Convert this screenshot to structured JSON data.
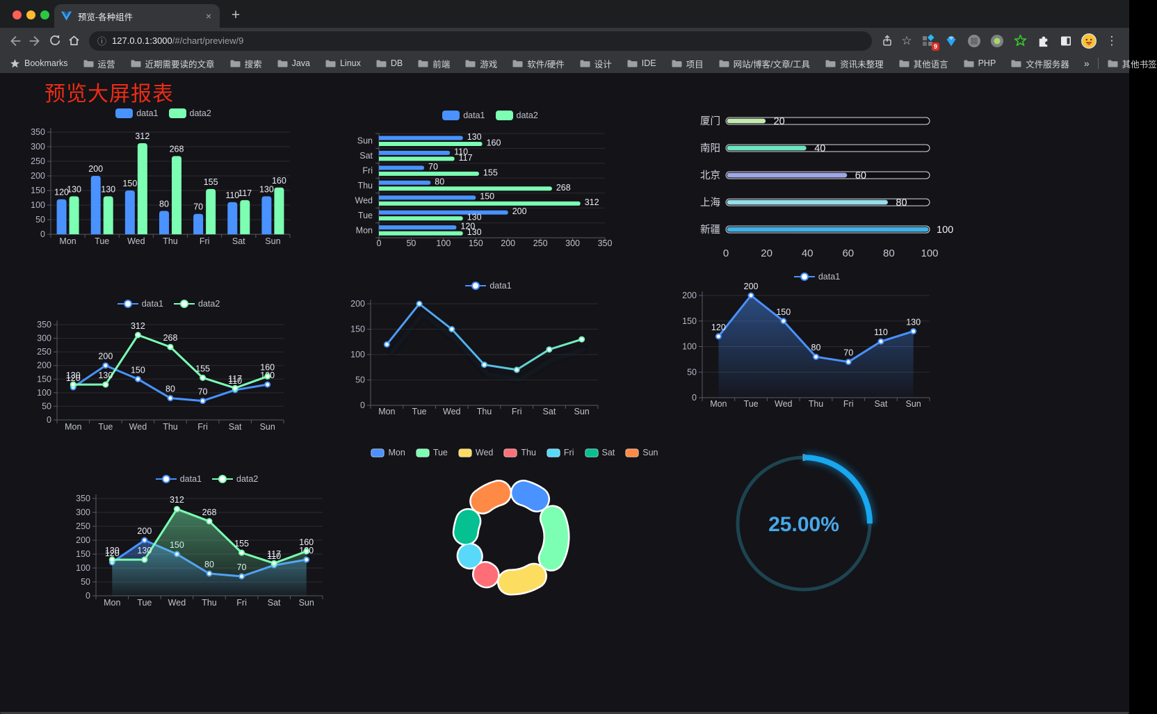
{
  "browser": {
    "tab": {
      "title": "预览-各种组件",
      "close_label": "×",
      "new_tab_label": "+"
    },
    "address": {
      "host": "127.0.0.1:3000",
      "path": "/#/chart/preview/9",
      "info_icon": "ⓘ"
    },
    "extension_badge": "9",
    "bookmarks_bar": {
      "star_label": "Bookmarks",
      "folders": [
        "运营",
        "近期需要读的文章",
        "搜索",
        "Java",
        "Linux",
        "DB",
        "前端",
        "游戏",
        "软件/硬件",
        "设计",
        "IDE",
        "项目",
        "网站/博客/文章/工具",
        "资讯未整理",
        "其他语言",
        "PHP",
        "文件服务器"
      ],
      "overflow": "»",
      "other_bookmarks": "其他书签"
    }
  },
  "page": {
    "title": "预览大屏报表",
    "title_color": "#ec2c14"
  },
  "palette": {
    "data1": "#4992ff",
    "data2": "#7cffb2"
  },
  "chart_data": [
    {
      "id": "bar-grouped",
      "type": "bar",
      "categories": [
        "Mon",
        "Tue",
        "Wed",
        "Thu",
        "Fri",
        "Sat",
        "Sun"
      ],
      "series": [
        {
          "name": "data1",
          "color": "#4992ff",
          "values": [
            120,
            200,
            150,
            80,
            70,
            110,
            130
          ]
        },
        {
          "name": "data2",
          "color": "#7cffb2",
          "values": [
            130,
            130,
            312,
            268,
            155,
            117,
            160
          ]
        }
      ],
      "ylim": [
        0,
        350
      ],
      "yticks": [
        0,
        50,
        100,
        150,
        200,
        250,
        300,
        350
      ],
      "grid": true,
      "legend_position": "top",
      "value_labels": true
    },
    {
      "id": "bar-horizontal",
      "type": "bar",
      "orientation": "horizontal",
      "categories_top_to_bottom": [
        "Sun",
        "Sat",
        "Fri",
        "Thu",
        "Wed",
        "Tue",
        "Mon"
      ],
      "series": [
        {
          "name": "data1",
          "color": "#4992ff",
          "values_top_to_bottom": [
            130,
            110,
            70,
            80,
            150,
            200,
            120
          ]
        },
        {
          "name": "data2",
          "color": "#7cffb2",
          "values_top_to_bottom": [
            160,
            117,
            155,
            268,
            312,
            130,
            130
          ]
        }
      ],
      "xlim": [
        0,
        350
      ],
      "xticks": [
        0,
        50,
        100,
        150,
        200,
        250,
        300,
        350
      ],
      "grid": true,
      "legend_position": "top",
      "value_labels": true
    },
    {
      "id": "capsule-bars",
      "type": "bar",
      "style": "capsule",
      "categories": [
        "厦门",
        "南阳",
        "北京",
        "上海",
        "新疆"
      ],
      "values": [
        20,
        40,
        60,
        80,
        100
      ],
      "colors": [
        "#c4ebad",
        "#6be6c1",
        "#a0a7e6",
        "#96dee8",
        "#3fb1e3"
      ],
      "xlim": [
        0,
        100
      ],
      "xticks": [
        0,
        20,
        40,
        60,
        80,
        100
      ],
      "value_labels": true
    },
    {
      "id": "line-two-series",
      "type": "line",
      "categories": [
        "Mon",
        "Tue",
        "Wed",
        "Thu",
        "Fri",
        "Sat",
        "Sun"
      ],
      "series": [
        {
          "name": "data1",
          "color": "#4992ff",
          "values": [
            120,
            200,
            150,
            80,
            70,
            110,
            130
          ]
        },
        {
          "name": "data2",
          "color": "#7cffb2",
          "values": [
            130,
            130,
            312,
            268,
            155,
            117,
            160
          ]
        }
      ],
      "ylim": [
        0,
        350
      ],
      "yticks": [
        0,
        50,
        100,
        150,
        200,
        250,
        300,
        350
      ],
      "grid": true,
      "legend_position": "top",
      "value_labels": true
    },
    {
      "id": "line-gradient",
      "type": "line",
      "categories": [
        "Mon",
        "Tue",
        "Wed",
        "Thu",
        "Fri",
        "Sat",
        "Sun"
      ],
      "series": [
        {
          "name": "data1",
          "gradient_stroke": [
            "#4992ff",
            "#52b8e8",
            "#7cffb2"
          ],
          "values": [
            120,
            200,
            150,
            80,
            70,
            110,
            130
          ],
          "shadow": true
        }
      ],
      "ylim": [
        0,
        200
      ],
      "yticks": [
        0,
        50,
        100,
        150,
        200
      ],
      "grid": true,
      "legend_position": "top",
      "value_labels": false
    },
    {
      "id": "line-area",
      "type": "area",
      "categories": [
        "Mon",
        "Tue",
        "Wed",
        "Thu",
        "Fri",
        "Sat",
        "Sun"
      ],
      "series": [
        {
          "name": "data1",
          "color": "#4992ff",
          "area": true,
          "values": [
            120,
            200,
            150,
            80,
            70,
            110,
            130
          ]
        }
      ],
      "ylim": [
        0,
        200
      ],
      "yticks": [
        0,
        50,
        100,
        150,
        200
      ],
      "grid": true,
      "legend_position": "top",
      "value_labels": true
    },
    {
      "id": "line-area-two-series",
      "type": "area",
      "categories": [
        "Mon",
        "Tue",
        "Wed",
        "Thu",
        "Fri",
        "Sat",
        "Sun"
      ],
      "series": [
        {
          "name": "data1",
          "color": "#4992ff",
          "area": true,
          "values": [
            120,
            200,
            150,
            80,
            70,
            110,
            130
          ]
        },
        {
          "name": "data2",
          "color": "#7cffb2",
          "area": true,
          "values": [
            130,
            130,
            312,
            268,
            155,
            117,
            160
          ]
        }
      ],
      "ylim": [
        0,
        350
      ],
      "yticks": [
        0,
        50,
        100,
        150,
        200,
        250,
        300,
        350
      ],
      "grid": true,
      "legend_position": "top",
      "value_labels": true
    },
    {
      "id": "donut-pie",
      "type": "pie",
      "categories": [
        "Mon",
        "Tue",
        "Wed",
        "Thu",
        "Fri",
        "Sat",
        "Sun"
      ],
      "values": [
        120,
        200,
        150,
        80,
        70,
        110,
        130
      ],
      "colors": [
        "#4992ff",
        "#7cffb2",
        "#fddd60",
        "#ff6e76",
        "#58d9f9",
        "#05c091",
        "#ff8a45"
      ],
      "donut": true,
      "rounded_segments": true,
      "legend_position": "top"
    },
    {
      "id": "progress-gauge",
      "type": "gauge",
      "percent": 25,
      "label": "25.00%",
      "arc_color": "#18a7f0",
      "track_color": "#1d4450",
      "text_color": "#47a9ea"
    }
  ]
}
